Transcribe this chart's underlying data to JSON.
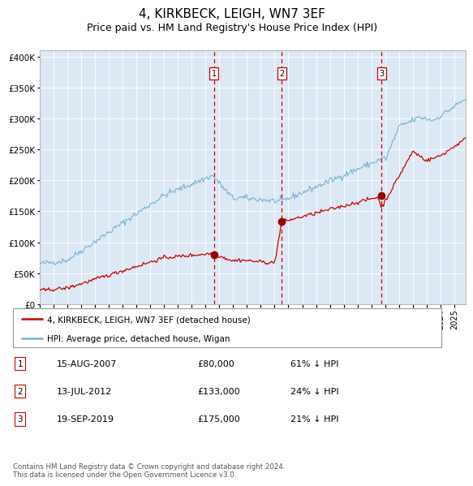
{
  "title": "4, KIRKBECK, LEIGH, WN7 3EF",
  "subtitle": "Price paid vs. HM Land Registry's House Price Index (HPI)",
  "title_fontsize": 11,
  "subtitle_fontsize": 9,
  "background_color": "#ffffff",
  "plot_bg_color": "#dce9f5",
  "ylim": [
    0,
    410000
  ],
  "yticks": [
    0,
    50000,
    100000,
    150000,
    200000,
    250000,
    300000,
    350000,
    400000
  ],
  "xlim_start": 1995.0,
  "xlim_end": 2025.8,
  "sale_dates": [
    2007.62,
    2012.53,
    2019.72
  ],
  "sale_prices": [
    80000,
    133000,
    175000
  ],
  "sale_labels": [
    "1",
    "2",
    "3"
  ],
  "vline_color": "#cc0000",
  "sale_color": "#990000",
  "hpi_color": "#7ab0d4",
  "red_line_color": "#cc0000",
  "legend_labels": [
    "4, KIRKBECK, LEIGH, WN7 3EF (detached house)",
    "HPI: Average price, detached house, Wigan"
  ],
  "table_rows": [
    [
      "1",
      "15-AUG-2007",
      "£80,000",
      "61% ↓ HPI"
    ],
    [
      "2",
      "13-JUL-2012",
      "£133,000",
      "24% ↓ HPI"
    ],
    [
      "3",
      "19-SEP-2019",
      "£175,000",
      "21% ↓ HPI"
    ]
  ],
  "footnote": "Contains HM Land Registry data © Crown copyright and database right 2024.\nThis data is licensed under the Open Government Licence v3.0."
}
